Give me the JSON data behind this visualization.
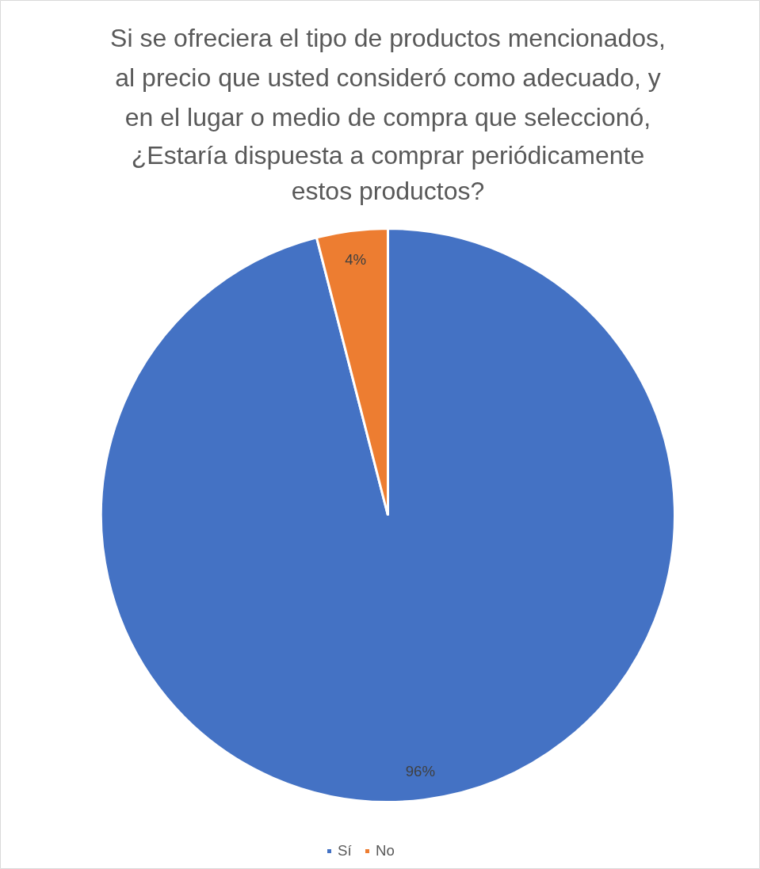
{
  "chart_data": {
    "type": "pie",
    "title": "Si se ofreciera el tipo de productos mencionados,\nal precio que usted consideró como adecuado, y\nen el lugar o medio de compra que seleccionó,\n¿Estaría dispuesta a comprar periódicamente\nestos productos?",
    "categories": [
      "Sí",
      "No"
    ],
    "values": [
      96,
      4
    ],
    "colors": [
      "#4472c4",
      "#ed7d31"
    ],
    "value_labels": [
      "96%",
      "4%"
    ],
    "legend": "bottom"
  }
}
